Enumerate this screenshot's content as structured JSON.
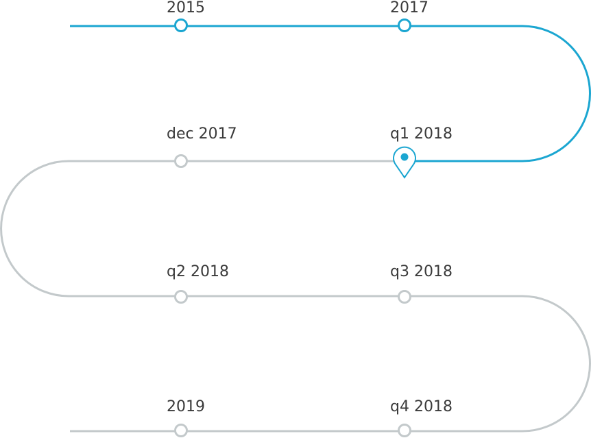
{
  "colors": {
    "completed": "#1ba6d1",
    "upcoming": "#c3c9cb",
    "label": "#3a3a3a",
    "background": "#ffffff"
  },
  "current_marker_icon": "map-pin-icon",
  "milestones": [
    {
      "label": "2015",
      "status": "completed"
    },
    {
      "label": "2017",
      "status": "completed"
    },
    {
      "label": "q1 2018",
      "status": "current"
    },
    {
      "label": "dec 2017",
      "status": "upcoming"
    },
    {
      "label": "q2 2018",
      "status": "upcoming"
    },
    {
      "label": "q3 2018",
      "status": "upcoming"
    },
    {
      "label": "q4 2018",
      "status": "upcoming"
    },
    {
      "label": "2019",
      "status": "upcoming"
    }
  ]
}
